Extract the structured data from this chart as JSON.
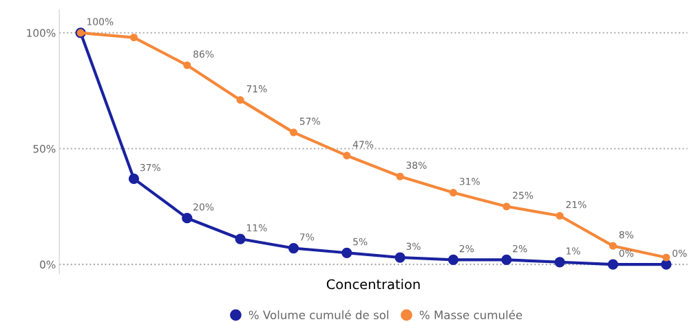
{
  "chart_data": {
    "type": "line",
    "xlabel": "Concentration",
    "categories": [
      null,
      null,
      null,
      null,
      null,
      null,
      null,
      null,
      null,
      null,
      null,
      null
    ],
    "series": [
      {
        "name": "% Volume cumulé de sol",
        "color": "#1a22a0",
        "values": [
          100,
          37,
          20,
          11,
          7,
          5,
          3,
          2,
          2,
          1,
          0,
          0
        ],
        "value_labels": [
          null,
          "37%",
          "20%",
          "11%",
          "7%",
          "5%",
          "3%",
          "2%",
          "2%",
          "1%",
          "0%",
          "0%"
        ]
      },
      {
        "name": "% Masse cumulée",
        "color": "#f5883a",
        "values": [
          100,
          98,
          86,
          71,
          57,
          47,
          38,
          31,
          25,
          21,
          8,
          3
        ],
        "value_labels": [
          "100%",
          null,
          "86%",
          "71%",
          "57%",
          "47%",
          "38%",
          "31%",
          "25%",
          "21%",
          "8%",
          null
        ]
      }
    ],
    "ylim": [
      -4,
      110
    ],
    "yticks": [
      {
        "value": 0,
        "label": "0%"
      },
      {
        "value": 50,
        "label": "50%"
      },
      {
        "value": 100,
        "label": "100%"
      }
    ],
    "grid": "y",
    "legend": "bottom",
    "marker": "circle",
    "line_style": "solid"
  }
}
